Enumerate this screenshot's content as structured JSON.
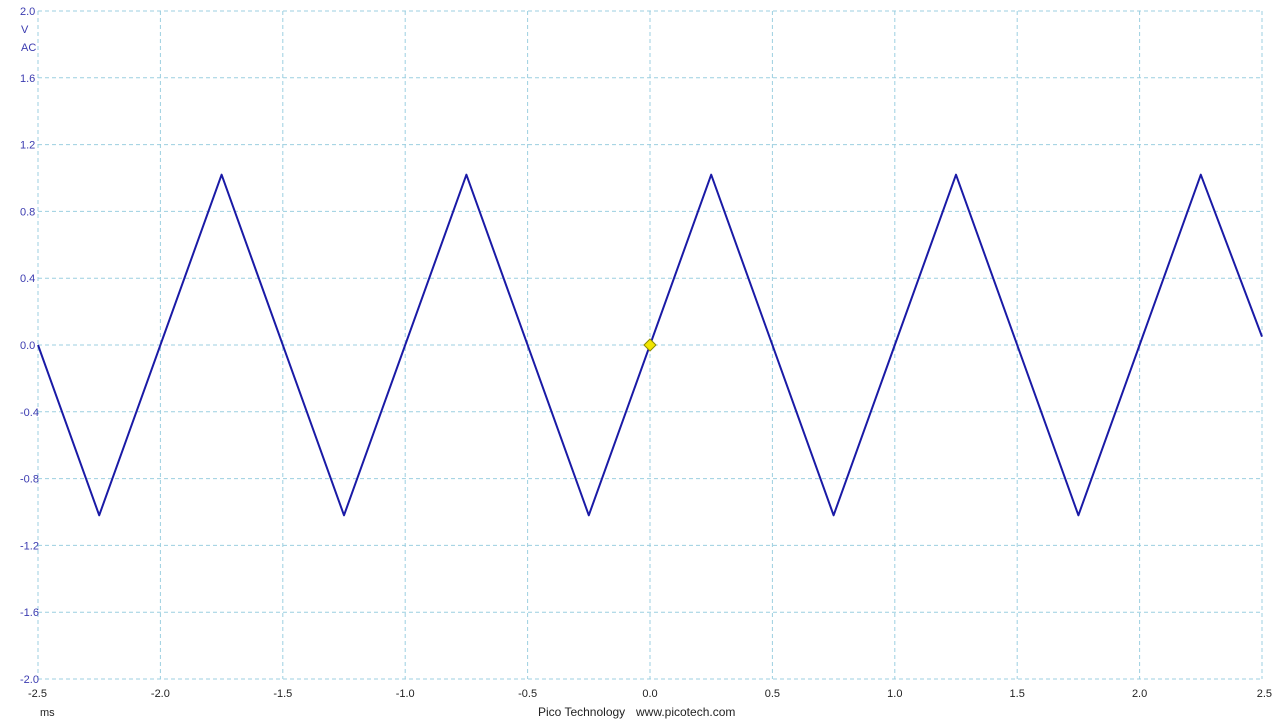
{
  "chart_data": {
    "type": "line",
    "x_unit": "ms",
    "y_unit": "V",
    "y_coupling": "AC",
    "xlim": [
      -2.5,
      2.5
    ],
    "ylim": [
      -2.0,
      2.0
    ],
    "x_ticks": [
      "-2.5",
      "-2.0",
      "-1.5",
      "-1.0",
      "-0.5",
      "0.0",
      "0.5",
      "1.0",
      "1.5",
      "2.0",
      "2.5"
    ],
    "y_ticks": [
      "2.0",
      "1.6",
      "1.2",
      "0.8",
      "0.4",
      "0.0",
      "-0.4",
      "-0.8",
      "-1.2",
      "-1.6",
      "-2.0"
    ],
    "grid": true,
    "series": [
      {
        "color": "#1a1aa6",
        "x": [
          -2.5,
          -2.25,
          -1.75,
          -1.25,
          -0.75,
          -0.25,
          0.25,
          0.75,
          1.25,
          1.75,
          2.25,
          2.5
        ],
        "y": [
          0.0,
          -1.02,
          1.02,
          -1.02,
          1.02,
          -1.02,
          1.02,
          -1.02,
          1.02,
          -1.02,
          1.02,
          0.05
        ]
      }
    ],
    "trigger_marker": {
      "x": 0.0,
      "y": 0.0,
      "color": "#f2e600"
    }
  },
  "footer": {
    "brand": "Pico Technology",
    "url": "www.picotech.com"
  },
  "colors": {
    "grid": "#9ccfe0",
    "axis_text": "#3b3bb0",
    "trace": "#1a1aa6"
  }
}
